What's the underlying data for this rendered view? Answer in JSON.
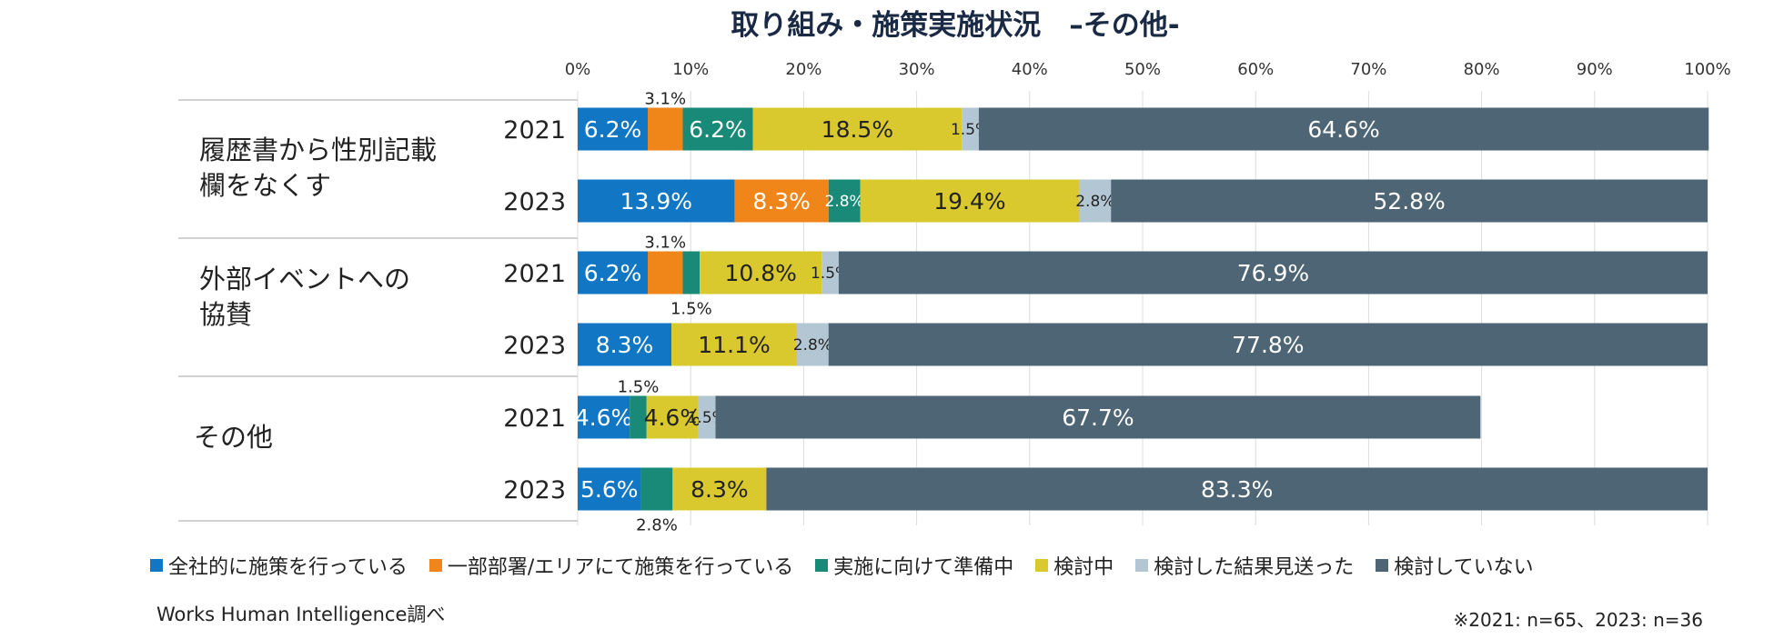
{
  "chart_data": {
    "type": "bar",
    "orientation": "horizontal-stacked-100",
    "title": "取り組み・施策実施状況　–その他-",
    "xlim": [
      0,
      100
    ],
    "xticks": [
      "0%",
      "10%",
      "20%",
      "30%",
      "40%",
      "50%",
      "60%",
      "70%",
      "80%",
      "90%",
      "100%"
    ],
    "groups": [
      {
        "label_lines": [
          "履歴書から性別記載",
          "欄をなくす"
        ],
        "rows": [
          "2021",
          "2023"
        ]
      },
      {
        "label_lines": [
          "外部イベントへの",
          "協賛"
        ],
        "rows": [
          "2021",
          "2023"
        ]
      },
      {
        "label_lines": [
          "その他"
        ],
        "rows": [
          "2021",
          "2023"
        ]
      }
    ],
    "series": [
      {
        "name": "全社的に施策を行っている",
        "color": "#1177c4",
        "values": [
          6.2,
          13.9,
          6.2,
          8.3,
          4.6,
          5.6
        ],
        "labels": [
          "6.2%",
          "13.9%",
          "6.2%",
          "8.3%",
          "4.6%",
          "5.6%"
        ]
      },
      {
        "name": "一部部署/エリアにて施策を行っている",
        "color": "#f0861a",
        "values": [
          3.1,
          8.3,
          3.1,
          0,
          0,
          0
        ],
        "labels": [
          "3.1%",
          "8.3%",
          "3.1%",
          "",
          "",
          ""
        ]
      },
      {
        "name": "実施に向けて準備中",
        "color": "#1a8a78",
        "values": [
          6.2,
          2.8,
          1.5,
          0,
          1.5,
          2.8
        ],
        "labels": [
          "6.2%",
          "2.8%",
          "1.5%",
          "",
          "1.5%",
          "2.8%"
        ]
      },
      {
        "name": "検討中",
        "color": "#d9c92e",
        "values": [
          18.5,
          19.4,
          10.8,
          11.1,
          4.6,
          8.3
        ],
        "labels": [
          "18.5%",
          "19.4%",
          "10.8%",
          "11.1%",
          "4.6%",
          "8.3%"
        ]
      },
      {
        "name": "検討した結果見送った",
        "color": "#b3c6d3",
        "values": [
          1.5,
          2.8,
          1.5,
          2.8,
          1.5,
          0
        ],
        "labels": [
          "1.5%",
          "2.8%",
          "1.5%",
          "2.8%",
          "1.5%",
          ""
        ]
      },
      {
        "name": "検討していない",
        "color": "#4d6574",
        "values": [
          64.6,
          52.8,
          76.9,
          77.8,
          67.7,
          83.3
        ],
        "labels": [
          "64.6%",
          "52.8%",
          "76.9%",
          "77.8%",
          "67.7%",
          "83.3%"
        ]
      }
    ]
  },
  "source_text": "Works Human Intelligence調べ",
  "note_text": "※2021: n=65、2023: n=36"
}
